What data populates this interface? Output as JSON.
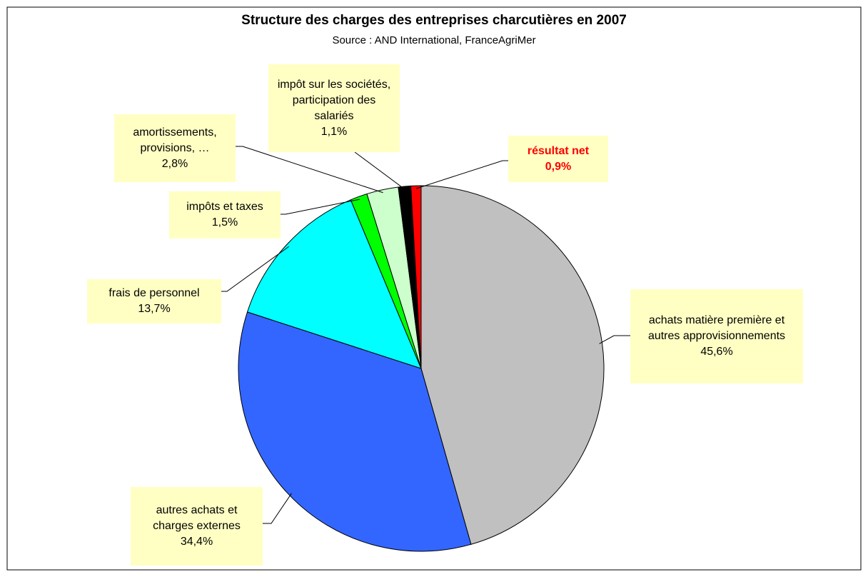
{
  "chart_data": {
    "type": "pie",
    "title": "Structure des charges des entreprises charcutières en 2007",
    "subtitle": "Source : AND International, FranceAgriMer",
    "categories": [
      "achats matière première et autres approvisionnements",
      "autres achats et charges externes",
      "frais de personnel",
      "impôts et taxes",
      "amortissements, provisions, …",
      "impôt sur les sociétés, participation des salariés",
      "résultat net"
    ],
    "values": [
      45.6,
      34.4,
      13.7,
      1.5,
      2.8,
      1.1,
      0.9
    ],
    "value_labels": [
      "45,6%",
      "34,4%",
      "13,7%",
      "1,5%",
      "2,8%",
      "1,1%",
      "0,9%"
    ],
    "colors": [
      "#c0c0c0",
      "#3366ff",
      "#00ffff",
      "#00ff00",
      "#ccffcc",
      "#000000",
      "#ff0000"
    ]
  }
}
